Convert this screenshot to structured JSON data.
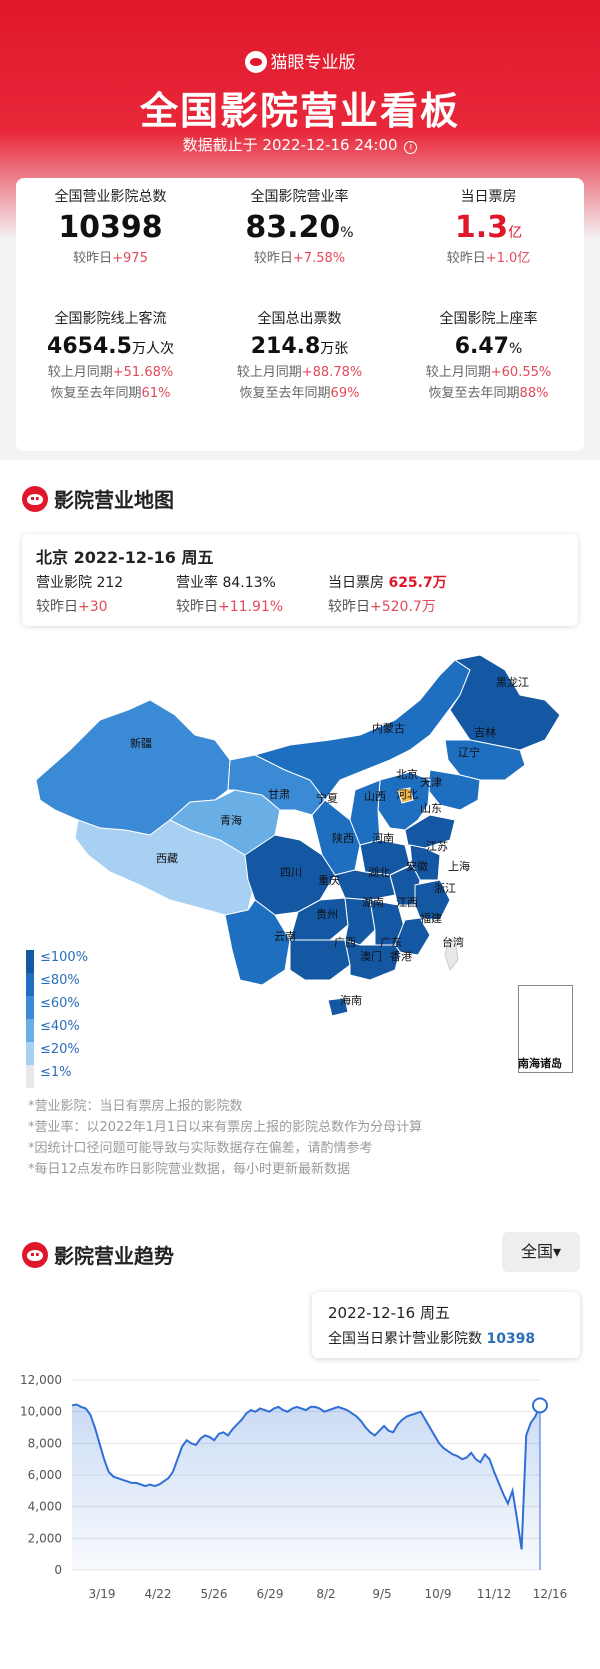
{
  "header": {
    "brand": "猫眼专业版",
    "title": "全国影院营业看板",
    "subtitle": "数据截止于 2022-12-16 24:00",
    "info_icon": "i"
  },
  "stats": [
    {
      "label": "全国营业影院总数",
      "value": "10398",
      "unit": "",
      "change_prefix": "较昨日",
      "change": "+975"
    },
    {
      "label": "全国影院营业率",
      "value": "83.20",
      "unit": "%",
      "change_prefix": "较昨日",
      "change": "+7.58%"
    },
    {
      "label": "当日票房",
      "value": "1.3",
      "unit": "亿",
      "change_prefix": "较昨日",
      "change": "+1.0亿"
    },
    {
      "label": "全国影院线上客流",
      "value": "4654.5",
      "unit": "万人次",
      "change_prefix": "较上月同期",
      "change": "+51.68%",
      "recover_prefix": "恢复至去年同期",
      "recover": "61%"
    },
    {
      "label": "全国总出票数",
      "value": "214.8",
      "unit": "万张",
      "change_prefix": "较上月同期",
      "change": "+88.78%",
      "recover_prefix": "恢复至去年同期",
      "recover": "69%"
    },
    {
      "label": "全国影院上座率",
      "value": "6.47",
      "unit": "%",
      "change_prefix": "较上月同期",
      "change": "+60.55%",
      "recover_prefix": "恢复至去年同期",
      "recover": "88%"
    }
  ],
  "map_section": {
    "title": "影院营业地图",
    "city": {
      "title": "北京 2022-12-16 周五",
      "cinemas_label": "营业影院",
      "cinemas": "212",
      "rate_label": "营业率",
      "rate": "84.13%",
      "box_label": "当日票房",
      "box": "625.7万",
      "change_prefix": "较昨日",
      "cinemas_change": "+30",
      "rate_change": "+11.91%",
      "box_change": "+520.7万"
    },
    "provinces": [
      "黑龙江",
      "吉林",
      "辽宁",
      "内蒙古",
      "新疆",
      "北京",
      "天津",
      "河北",
      "甘肃",
      "宁夏",
      "山西",
      "山东",
      "青海",
      "陕西",
      "河南",
      "江苏",
      "西藏",
      "四川",
      "湖北",
      "安徽",
      "上海",
      "重庆",
      "浙江",
      "湖南",
      "江西",
      "贵州",
      "福建",
      "云南",
      "广西",
      "广东",
      "澳门",
      "香港",
      "台湾",
      "海南"
    ],
    "south_sea": "南海诸岛",
    "legend": [
      "≤100%",
      "≤80%",
      "≤60%",
      "≤40%",
      "≤20%",
      "≤1%"
    ],
    "legend_colors": [
      "#1457a3",
      "#1f6fc0",
      "#3b8ad6",
      "#6aaee6",
      "#a7d0f2",
      "#e8e8e8"
    ],
    "highlight_color": "#f0b84a",
    "notes": [
      "*营业影院：当日有票房上报的影院数",
      "*营业率：以2022年1月1日以来有票房上报的影院总数作为分母计算",
      "*因统计口径问题可能导致与实际数据存在偏差，请酌情参考",
      "*每日12点发布昨日影院营业数据，每小时更新最新数据"
    ]
  },
  "trend_section": {
    "title": "影院营业趋势",
    "region": "全国",
    "region_caret": "▾",
    "tooltip_date": "2022-12-16 周五",
    "tooltip_label": "全国当日累计营业影院数",
    "tooltip_value": "10398"
  },
  "chart_data": {
    "type": "area",
    "title": "",
    "xlabel": "",
    "ylabel": "",
    "ylim": [
      0,
      12000
    ],
    "yticks": [
      "0",
      "2,000",
      "4,000",
      "6,000",
      "8,000",
      "10,000",
      "12,000"
    ],
    "xticks": [
      "3/19",
      "4/22",
      "5/26",
      "6/29",
      "8/2",
      "9/5",
      "10/9",
      "11/12",
      "12/16"
    ],
    "grid": true,
    "series": [
      {
        "values": [
          10400,
          10450,
          10300,
          10200,
          9800,
          9000,
          8000,
          7000,
          6200,
          5900,
          5800,
          5700,
          5600,
          5500,
          5500,
          5400,
          5300,
          5400,
          5300,
          5400,
          5600,
          5800,
          6200,
          7000,
          7800,
          8200,
          8000,
          7900,
          8300,
          8500,
          8400,
          8200,
          8600,
          8700,
          8500,
          8900,
          9200,
          9500,
          9900,
          10100,
          10000,
          10200,
          10100,
          10000,
          10200,
          10300,
          10100,
          10000,
          10200,
          10300,
          10200,
          10100,
          10300,
          10300,
          10200,
          10000,
          10100,
          10200,
          10300,
          10200,
          10100,
          9900,
          9700,
          9400,
          9000,
          8700,
          8500,
          8800,
          9100,
          8800,
          8700,
          9200,
          9500,
          9700,
          9800,
          9900,
          10000,
          9500,
          9000,
          8500,
          8000,
          7700,
          7500,
          7300,
          7200,
          7000,
          7100,
          7400,
          7000,
          6800,
          7300,
          7000,
          6200,
          5500,
          4800,
          4200,
          5000,
          3200,
          1300,
          8500,
          9300,
          9700,
          10398
        ]
      }
    ]
  }
}
